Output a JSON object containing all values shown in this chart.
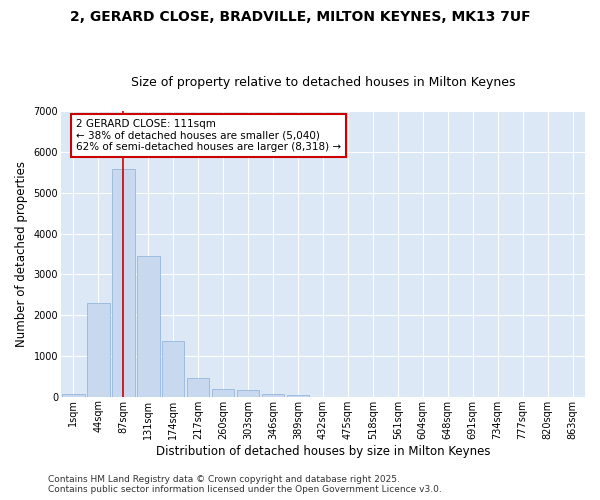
{
  "title_line1": "2, GERARD CLOSE, BRADVILLE, MILTON KEYNES, MK13 7UF",
  "title_line2": "Size of property relative to detached houses in Milton Keynes",
  "xlabel": "Distribution of detached houses by size in Milton Keynes",
  "ylabel": "Number of detached properties",
  "bar_labels": [
    "1sqm",
    "44sqm",
    "87sqm",
    "131sqm",
    "174sqm",
    "217sqm",
    "260sqm",
    "303sqm",
    "346sqm",
    "389sqm",
    "432sqm",
    "475sqm",
    "518sqm",
    "561sqm",
    "604sqm",
    "648sqm",
    "691sqm",
    "734sqm",
    "777sqm",
    "820sqm",
    "863sqm"
  ],
  "bar_values": [
    70,
    2300,
    5600,
    3450,
    1360,
    460,
    185,
    160,
    75,
    40,
    0,
    0,
    0,
    0,
    0,
    0,
    0,
    0,
    0,
    0,
    0
  ],
  "bar_color": "#c8d8ee",
  "bar_edge_color": "#8ab0d8",
  "bg_color": "#dce8f5",
  "grid_color": "#ffffff",
  "vline_x": 2,
  "vline_color": "#cc0000",
  "annotation_text": "2 GERARD CLOSE: 111sqm\n← 38% of detached houses are smaller (5,040)\n62% of semi-detached houses are larger (8,318) →",
  "annotation_box_color": "#cc0000",
  "ylim": [
    0,
    7000
  ],
  "yticks": [
    0,
    1000,
    2000,
    3000,
    4000,
    5000,
    6000,
    7000
  ],
  "footnote": "Contains HM Land Registry data © Crown copyright and database right 2025.\nContains public sector information licensed under the Open Government Licence v3.0.",
  "title_fontsize": 10,
  "subtitle_fontsize": 9,
  "axis_label_fontsize": 8.5,
  "tick_fontsize": 7,
  "annotation_fontsize": 7.5,
  "footnote_fontsize": 6.5
}
